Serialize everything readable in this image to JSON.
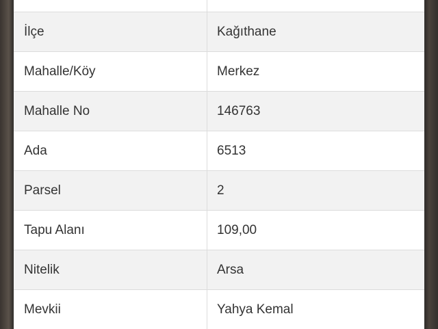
{
  "table": {
    "rows": [
      [
        "İlçe",
        "Kağıthane"
      ],
      [
        "Mahalle/Köy",
        "Merkez"
      ],
      [
        "Mahalle No",
        "146763"
      ],
      [
        "Ada",
        "6513"
      ],
      [
        "Parsel",
        "2"
      ],
      [
        "Tapu Alanı",
        "109,00"
      ],
      [
        "Nitelik",
        "Arsa"
      ],
      [
        "Mevkii",
        "Yahya Kemal"
      ]
    ]
  }
}
